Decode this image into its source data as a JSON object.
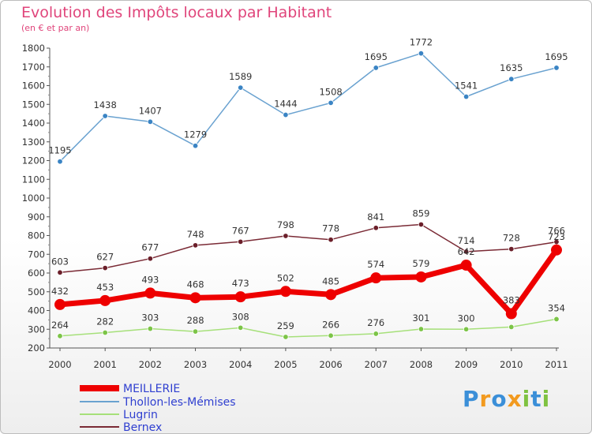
{
  "header": {
    "title": "Evolution des Impôts locaux par Habitant",
    "subtitle": "(en € et par an)"
  },
  "logo": {
    "text": "Proxiti",
    "letters": [
      {
        "ch": "P",
        "color": "#3b8fd8"
      },
      {
        "ch": "r",
        "color": "#f29a1f"
      },
      {
        "ch": "o",
        "color": "#3b8fd8"
      },
      {
        "ch": "x",
        "color": "#f29a1f"
      },
      {
        "ch": "i",
        "color": "#7fc241"
      },
      {
        "ch": "t",
        "color": "#3b8fd8"
      },
      {
        "ch": "i",
        "color": "#7fc241"
      }
    ]
  },
  "chart_data": {
    "type": "line",
    "title": "Evolution des Impôts locaux par Habitant",
    "subtitle": "(en € et par an)",
    "xlabel": "",
    "ylabel": "",
    "categories": [
      "2000",
      "2001",
      "2002",
      "2003",
      "2004",
      "2005",
      "2006",
      "2007",
      "2008",
      "2009",
      "2010",
      "2011"
    ],
    "ylim": [
      200,
      1800
    ],
    "yticks": [
      200,
      300,
      400,
      500,
      600,
      700,
      800,
      900,
      1000,
      1100,
      1200,
      1300,
      1400,
      1500,
      1600,
      1700,
      1800
    ],
    "grid": false,
    "legend_position": "bottom-left",
    "series": [
      {
        "name": "MEILLERIE",
        "color": "#ee0000",
        "emphasis": true,
        "values": [
          432,
          453,
          493,
          468,
          473,
          502,
          485,
          574,
          579,
          642,
          383,
          723
        ],
        "labels": [
          "432",
          "453",
          "493",
          "468",
          "473",
          "502",
          "485",
          "574",
          "579",
          "642",
          "383",
          "723"
        ]
      },
      {
        "name": "Thollon-les-Mémises",
        "color": "#6aa2d0",
        "marker": "#3a84c4",
        "values": [
          1195,
          1438,
          1407,
          1279,
          1589,
          1444,
          1508,
          1695,
          1772,
          1541,
          1635,
          1695
        ],
        "labels": [
          "1195",
          "1438",
          "1407",
          "1279",
          "1589",
          "1444",
          "1508",
          "1695",
          "1772",
          "1541",
          "1635",
          "1695"
        ]
      },
      {
        "name": "Lugrin",
        "color": "#a6e07a",
        "marker": "#7cc447",
        "values": [
          264,
          282,
          303,
          288,
          308,
          259,
          266,
          276,
          301,
          300,
          312,
          354
        ],
        "labels": [
          "264",
          "282",
          "303",
          "288",
          "308",
          "259",
          "266",
          "276",
          "301",
          "300",
          "",
          "354"
        ]
      },
      {
        "name": "Bernex",
        "color": "#7a2a35",
        "marker": "#6b1f2a",
        "values": [
          603,
          627,
          677,
          748,
          767,
          798,
          778,
          841,
          859,
          714,
          728,
          766
        ],
        "labels": [
          "603",
          "627",
          "677",
          "748",
          "767",
          "798",
          "778",
          "841",
          "859",
          "714",
          "728",
          "766"
        ]
      }
    ]
  }
}
